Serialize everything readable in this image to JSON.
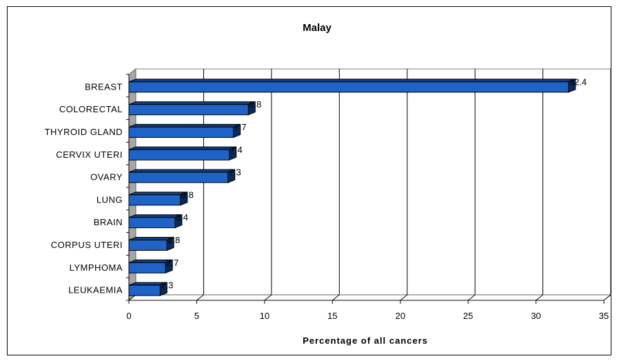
{
  "chart_data": {
    "type": "bar",
    "orientation": "horizontal",
    "title": "Malay",
    "xlabel": "Percentage of all cancers",
    "ylabel": "",
    "categories": [
      "BREAST",
      "COLORECTAL",
      "THYROID GLAND",
      "CERVIX UTERI",
      "OVARY",
      "LUNG",
      "BRAIN",
      "CORPUS UTERI",
      "LYMPHOMA",
      "LEUKAEMIA"
    ],
    "values": [
      32.4,
      8.8,
      7.7,
      7.4,
      7.3,
      3.8,
      3.4,
      2.8,
      2.7,
      2.3
    ],
    "data_labels": [
      "32.4",
      "8.8",
      "7.7",
      "7.4",
      "7.3",
      "3.8",
      "3.4",
      "2.8",
      "2.7",
      "2.3"
    ],
    "xlim": [
      0,
      35
    ],
    "xticks": [
      "0",
      "5",
      "10",
      "15",
      "20",
      "25",
      "30",
      "35"
    ],
    "grid": "vertical",
    "legend": "none",
    "colors": {
      "bar_front": "#1f63c6",
      "bar_top": "#123e80",
      "bar_side": "#0b2a5c",
      "wall": "#a6a6a6",
      "grid": "#000000"
    }
  }
}
